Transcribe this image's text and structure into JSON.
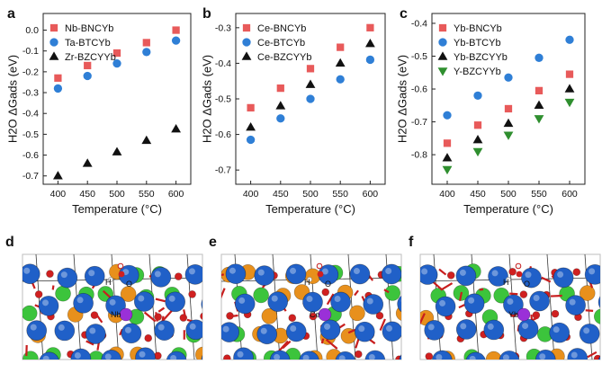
{
  "colors": {
    "red": "#e85a5a",
    "blue": "#2f7fd6",
    "black": "#111111",
    "green": "#2f8f2f",
    "atom_blue": "#2060c8",
    "atom_green": "#3cc43c",
    "atom_orange": "#e8901c",
    "atom_red": "#d02020",
    "atom_purple": "#9a30d8",
    "atom_white": "#f4f4f4"
  },
  "chart_data": [
    {
      "panel": "a",
      "type": "scatter",
      "xlabel": "Temperature (°C)",
      "ylabel": "H2O ΔGads (eV)",
      "x": [
        400,
        450,
        500,
        550,
        600
      ],
      "xticks": [
        "400",
        "450",
        "500",
        "550",
        "600"
      ],
      "ylim": [
        -0.74,
        0.08
      ],
      "yticks": [
        "0.0",
        "-0.1",
        "-0.2",
        "-0.3",
        "-0.4",
        "-0.5",
        "-0.6",
        "-0.7"
      ],
      "ytick_values": [
        0.0,
        -0.1,
        -0.2,
        -0.3,
        -0.4,
        -0.5,
        -0.6,
        -0.7
      ],
      "legend_position": "top-left",
      "series": [
        {
          "name": "Nb-BNCYb",
          "marker": "square",
          "color": "red",
          "values": [
            -0.23,
            -0.17,
            -0.11,
            -0.06,
            0.0
          ]
        },
        {
          "name": "Ta-BTCYb",
          "marker": "circle",
          "color": "blue",
          "values": [
            -0.28,
            -0.22,
            -0.16,
            -0.105,
            -0.05
          ]
        },
        {
          "name": "Zr-BZCYYb",
          "marker": "triangle-up",
          "color": "black",
          "values": [
            -0.7,
            -0.64,
            -0.585,
            -0.53,
            -0.475
          ]
        }
      ]
    },
    {
      "panel": "b",
      "type": "scatter",
      "xlabel": "Temperature (°C)",
      "ylabel": "H2O ΔGads (eV)",
      "x": [
        400,
        450,
        500,
        550,
        600
      ],
      "xticks": [
        "400",
        "450",
        "500",
        "550",
        "600"
      ],
      "ylim": [
        -0.74,
        -0.26
      ],
      "yticks": [
        "-0.3",
        "-0.4",
        "-0.5",
        "-0.6",
        "-0.7"
      ],
      "ytick_values": [
        -0.3,
        -0.4,
        -0.5,
        -0.6,
        -0.7
      ],
      "legend_position": "top-left",
      "series": [
        {
          "name": "Ce-BNCYb",
          "marker": "square",
          "color": "red",
          "values": [
            -0.525,
            -0.47,
            -0.415,
            -0.355,
            -0.3
          ]
        },
        {
          "name": "Ce-BTCYb",
          "marker": "circle",
          "color": "blue",
          "values": [
            -0.615,
            -0.555,
            -0.5,
            -0.445,
            -0.39
          ]
        },
        {
          "name": "Ce-BZCYYb",
          "marker": "triangle-up",
          "color": "black",
          "values": [
            -0.58,
            -0.52,
            -0.46,
            -0.4,
            -0.345
          ]
        }
      ]
    },
    {
      "panel": "c",
      "type": "scatter",
      "xlabel": "Temperature (°C)",
      "ylabel": "H2O ΔGads (eV)",
      "x": [
        400,
        450,
        500,
        550,
        600
      ],
      "xticks": [
        "400",
        "450",
        "500",
        "550",
        "600"
      ],
      "ylim": [
        -0.89,
        -0.37
      ],
      "yticks": [
        "-0.4",
        "-0.5",
        "-0.6",
        "-0.7",
        "-0.8"
      ],
      "ytick_values": [
        -0.4,
        -0.5,
        -0.6,
        -0.7,
        -0.8
      ],
      "legend_position": "top-left",
      "series": [
        {
          "name": "Yb-BNCYb",
          "marker": "square",
          "color": "red",
          "values": [
            -0.765,
            -0.71,
            -0.66,
            -0.605,
            -0.555
          ]
        },
        {
          "name": "Yb-BTCYb",
          "marker": "circle",
          "color": "blue",
          "values": [
            -0.68,
            -0.62,
            -0.565,
            -0.505,
            -0.45
          ]
        },
        {
          "name": "Yb-BZCYYb",
          "marker": "triangle-up",
          "color": "black",
          "values": [
            -0.81,
            -0.755,
            -0.705,
            -0.65,
            -0.6
          ]
        },
        {
          "name": "Y-BZCYYb",
          "marker": "triangle-down",
          "color": "green",
          "values": [
            -0.845,
            -0.79,
            -0.74,
            -0.69,
            -0.64
          ]
        }
      ]
    }
  ],
  "structures": [
    {
      "panel": "d",
      "labels": [
        "H",
        "O",
        "Nb"
      ]
    },
    {
      "panel": "e",
      "labels": [
        "H",
        "O",
        "Ce"
      ]
    },
    {
      "panel": "f",
      "labels": [
        "H",
        "O",
        "Yb"
      ]
    }
  ]
}
